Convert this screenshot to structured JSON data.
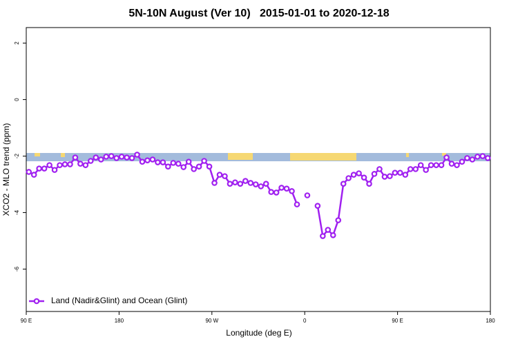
{
  "chart_data": {
    "type": "line",
    "title": "5N-10N August (Ver 10)   2015-01-01 to 2020-12-18",
    "x_label": "Longitude (deg E)",
    "y_label": "XCO2 - MLO trend (ppm)",
    "xlim": [
      90,
      540
    ],
    "ylim": [
      -7.5,
      2.55
    ],
    "xticks": [
      {
        "value": 90,
        "label": "90 E"
      },
      180,
      {
        "value": 270,
        "label": "90 W"
      },
      {
        "value": 360,
        "label": "0"
      },
      {
        "value": 450,
        "label": "90 E"
      },
      {
        "value": 540,
        "label": "180"
      }
    ],
    "yticks": [
      -6,
      -4,
      -2,
      0,
      2
    ],
    "grid": false,
    "legend": "lower left",
    "x": [
      92.5,
      97.5,
      102.5,
      107.5,
      112.5,
      117.5,
      122.5,
      127.5,
      132.5,
      137.5,
      142.5,
      147.5,
      152.5,
      157.5,
      162.5,
      167.5,
      172.5,
      177.5,
      182.5,
      187.5,
      192.5,
      197.5,
      202.5,
      207.5,
      212.5,
      217.5,
      222.5,
      227.5,
      232.5,
      237.5,
      242.5,
      247.5,
      252.5,
      257.5,
      262.5,
      267.5,
      272.5,
      277.5,
      282.5,
      287.5,
      292.5,
      297.5,
      302.5,
      307.5,
      312.5,
      317.5,
      322.5,
      327.5,
      332.5,
      337.5,
      342.5,
      347.5,
      352.5,
      357.5,
      362.5,
      367.5,
      372.5,
      377.5,
      382.5,
      387.5,
      392.5,
      397.5,
      402.5,
      407.5,
      412.5,
      417.5,
      422.5,
      427.5,
      432.5,
      437.5,
      442.5,
      447.5,
      452.5,
      457.5,
      462.5,
      467.5,
      472.5,
      477.5,
      482.5,
      487.5,
      492.5,
      497.5,
      502.5,
      507.5,
      512.5,
      517.5,
      522.5,
      527.5,
      532.5,
      537.5
    ],
    "series": [
      {
        "name": "Land (Nadir&Glint) and Ocean (Glint)",
        "color": "#a020f0",
        "values": [
          -2.56,
          -2.66,
          -2.44,
          -2.44,
          -2.32,
          -2.49,
          -2.32,
          -2.29,
          -2.29,
          -2.05,
          -2.27,
          -2.32,
          -2.17,
          -2.05,
          -2.12,
          -2.02,
          -2.0,
          -2.07,
          -2.02,
          -2.05,
          -2.07,
          -1.95,
          -2.2,
          -2.15,
          -2.12,
          -2.22,
          -2.22,
          -2.37,
          -2.24,
          -2.27,
          -2.39,
          -2.2,
          -2.46,
          -2.37,
          -2.17,
          -2.37,
          -2.95,
          -2.66,
          -2.71,
          -2.98,
          -2.93,
          -2.98,
          -2.88,
          -2.95,
          -3.0,
          -3.07,
          -2.98,
          -3.27,
          -3.29,
          -3.12,
          -3.15,
          -3.24,
          -3.71,
          null,
          -3.39,
          null,
          -3.76,
          -4.83,
          -4.61,
          -4.8,
          -4.27,
          -2.98,
          -2.78,
          -2.66,
          -2.61,
          -2.76,
          -2.98,
          -2.63,
          -2.46,
          -2.73,
          -2.71,
          -2.59,
          -2.59,
          -2.66,
          -2.46,
          -2.46,
          -2.32,
          -2.49,
          -2.32,
          -2.32,
          -2.32,
          -2.05,
          -2.27,
          -2.32,
          -2.2,
          -2.07,
          -2.12,
          -2.02,
          -2.0,
          -2.07
        ]
      }
    ]
  }
}
